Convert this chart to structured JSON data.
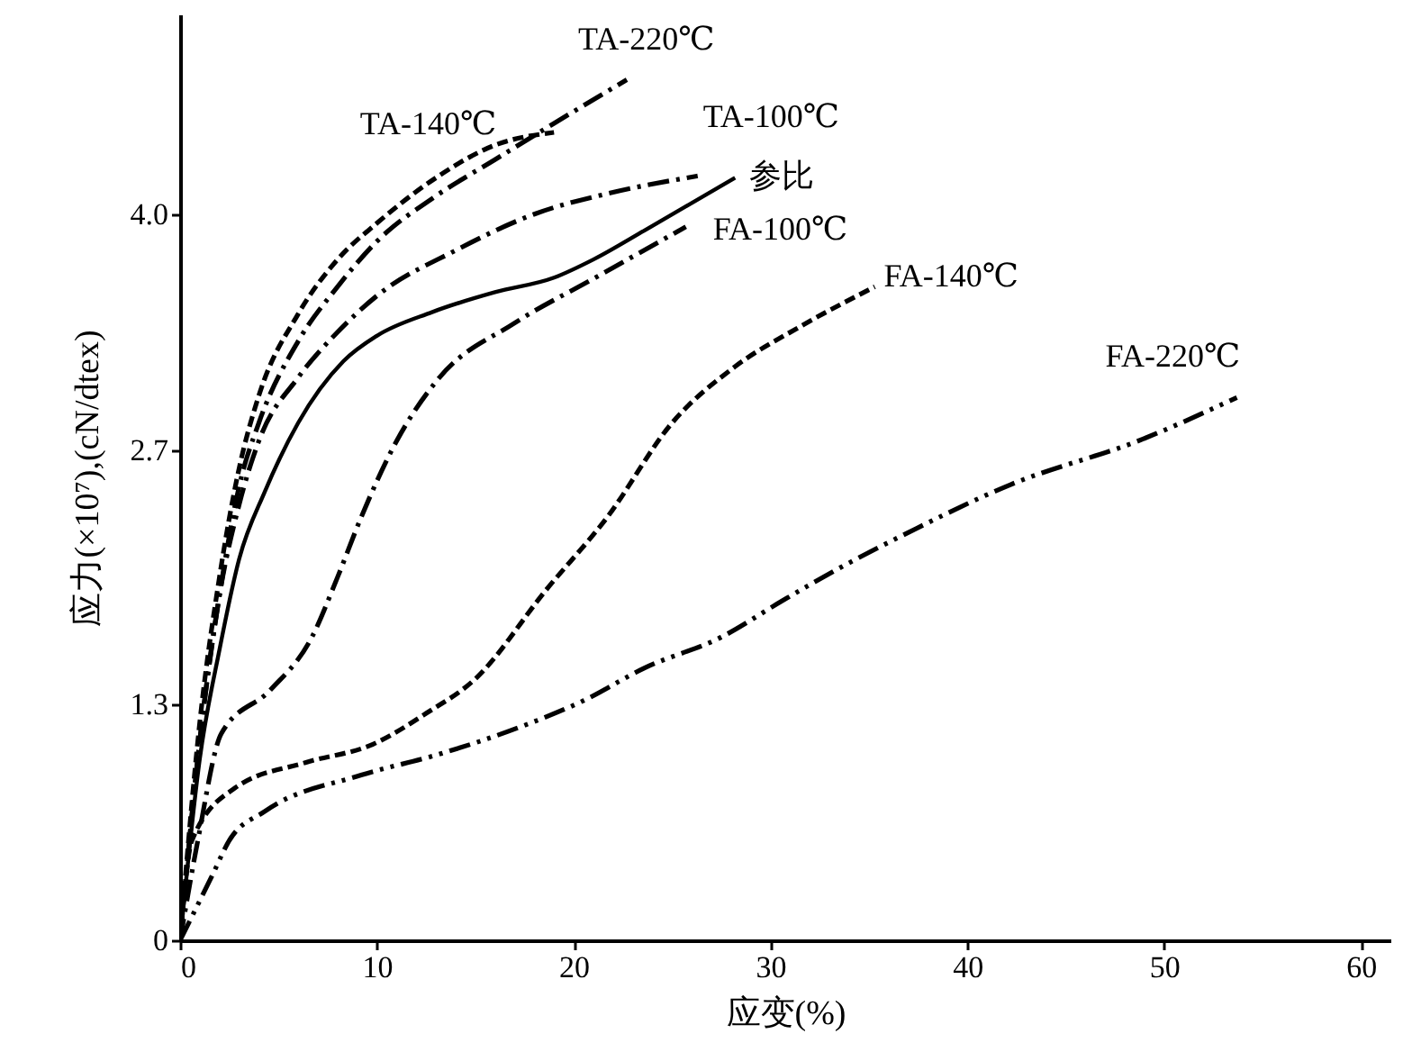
{
  "chart_data": {
    "type": "line",
    "xlabel": "应变(%)",
    "ylabel": "应力(×10⁷),(cN/dtex)",
    "xlim": [
      0,
      61.5
    ],
    "xticks": [
      0,
      10,
      20,
      30,
      40,
      50,
      60
    ],
    "ylim": [
      0,
      5.1
    ],
    "yticks": [
      0,
      1.3,
      2.7,
      {
        "value": 4,
        "label": "4.0"
      }
    ],
    "grid": false,
    "marker": "none",
    "series": [
      {
        "name": "TA-140℃",
        "color": "#000000",
        "line_style": "dashed",
        "x": [
          0,
          1,
          2,
          3,
          4,
          6,
          8,
          10,
          13,
          16,
          19
        ],
        "values": [
          0,
          1.2,
          2.0,
          2.6,
          3.0,
          3.45,
          3.75,
          3.95,
          4.2,
          4.38,
          4.45
        ]
      },
      {
        "name": "TA-220℃",
        "color": "#000000",
        "line_style": "dashdot",
        "x": [
          0,
          1,
          2,
          3,
          4,
          6,
          8,
          10,
          13,
          16,
          19,
          22.7
        ],
        "values": [
          0,
          1.1,
          1.9,
          2.5,
          2.85,
          3.3,
          3.6,
          3.85,
          4.1,
          4.3,
          4.5,
          4.74
        ]
      },
      {
        "name": "TA-100℃",
        "color": "#000000",
        "line_style": "dashdot",
        "x": [
          0,
          1,
          2,
          3,
          4,
          6,
          8,
          10,
          14,
          18,
          22,
          26.3
        ],
        "values": [
          0,
          1.1,
          1.9,
          2.4,
          2.75,
          3.1,
          3.35,
          3.55,
          3.8,
          4.0,
          4.12,
          4.21
        ]
      },
      {
        "name": "参比",
        "color": "#000000",
        "line_style": "solid",
        "x": [
          0,
          1,
          2,
          3,
          4.3,
          6,
          8.3,
          10,
          12.8,
          16,
          19,
          21,
          23.6,
          28.2
        ],
        "values": [
          0,
          1.0,
          1.6,
          2.1,
          2.47,
          2.85,
          3.19,
          3.33,
          3.46,
          3.57,
          3.65,
          3.75,
          3.91,
          4.2
        ]
      },
      {
        "name": "FA-100℃",
        "color": "#000000",
        "line_style": "dashdot",
        "x": [
          0,
          0.9,
          2.1,
          4.6,
          6.7,
          8,
          9.2,
          11,
          13.1,
          17,
          21.1,
          25.7
        ],
        "values": [
          0,
          0.55,
          1.14,
          1.38,
          1.67,
          2.0,
          2.33,
          2.75,
          3.09,
          3.4,
          3.65,
          3.93
        ]
      },
      {
        "name": "FA-140℃",
        "color": "#000000",
        "line_style": "dashed",
        "x": [
          0,
          0.6,
          2.8,
          6.4,
          9.8,
          12.5,
          15,
          18.6,
          21.7,
          25,
          28.2,
          31.5,
          35.3
        ],
        "values": [
          0,
          0.55,
          0.84,
          0.98,
          1.08,
          1.25,
          1.44,
          1.93,
          2.33,
          2.85,
          3.16,
          3.38,
          3.6
        ]
      },
      {
        "name": "FA-220℃",
        "color": "#000000",
        "line_style": "dashdotdot",
        "x": [
          0,
          1.6,
          2.5,
          4.3,
          9.2,
          13,
          17.4,
          20.5,
          23.6,
          27.5,
          30.6,
          33.5,
          36.7,
          42.2,
          48.9,
          53.7
        ],
        "values": [
          0,
          0.35,
          0.55,
          0.71,
          0.91,
          1.02,
          1.18,
          1.32,
          1.5,
          1.67,
          1.87,
          2.05,
          2.23,
          2.51,
          2.76,
          2.99
        ]
      }
    ]
  }
}
